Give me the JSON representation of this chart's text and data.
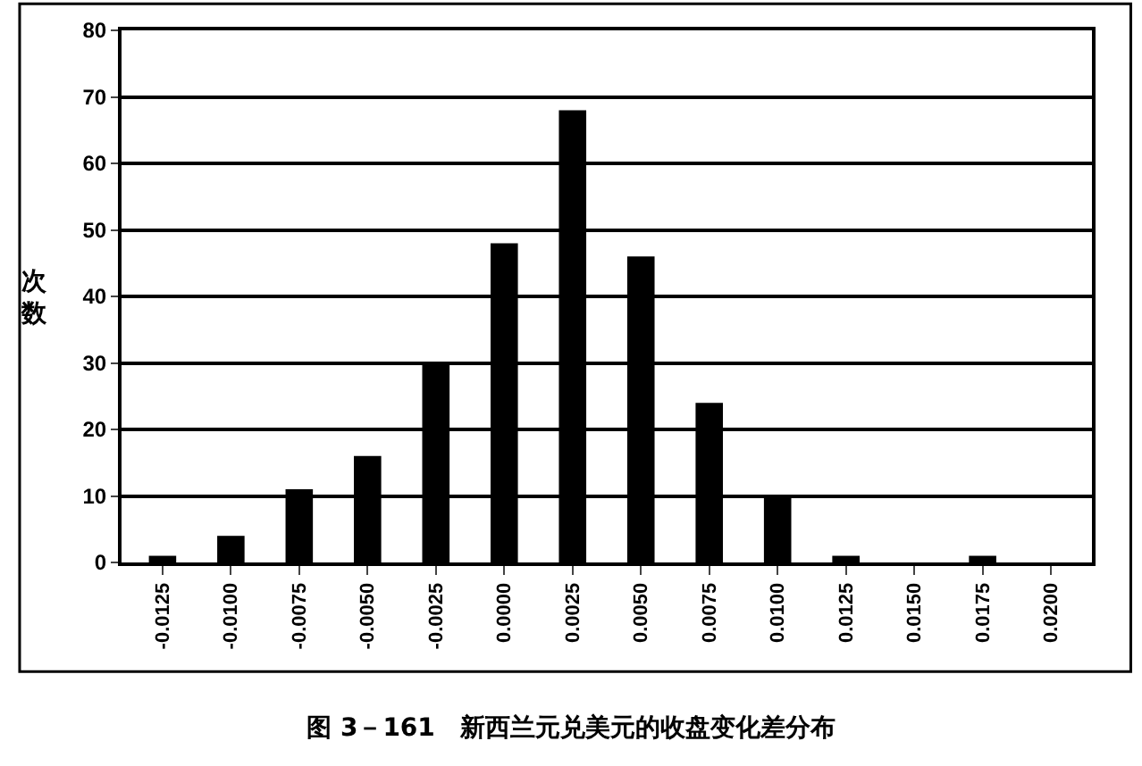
{
  "chart_data": {
    "type": "bar",
    "title": "图 3－161　新西兰元兑美元的收盘变化差分布",
    "ylabel": "次数",
    "categories": [
      "-0.0125",
      "-0.0100",
      "-0.0075",
      "-0.0050",
      "-0.0025",
      "0.0000",
      "0.0025",
      "0.0050",
      "0.0075",
      "0.0100",
      "0.0125",
      "0.0150",
      "0.0175",
      "0.0200"
    ],
    "values": [
      1,
      4,
      11,
      16,
      30,
      48,
      68,
      46,
      24,
      10,
      1,
      0,
      1,
      0
    ],
    "color": "#000000",
    "ylim": [
      0,
      80
    ],
    "yticks": [
      0,
      10,
      20,
      30,
      40,
      50,
      60,
      70,
      80
    ],
    "grid": "y",
    "legend": false
  }
}
